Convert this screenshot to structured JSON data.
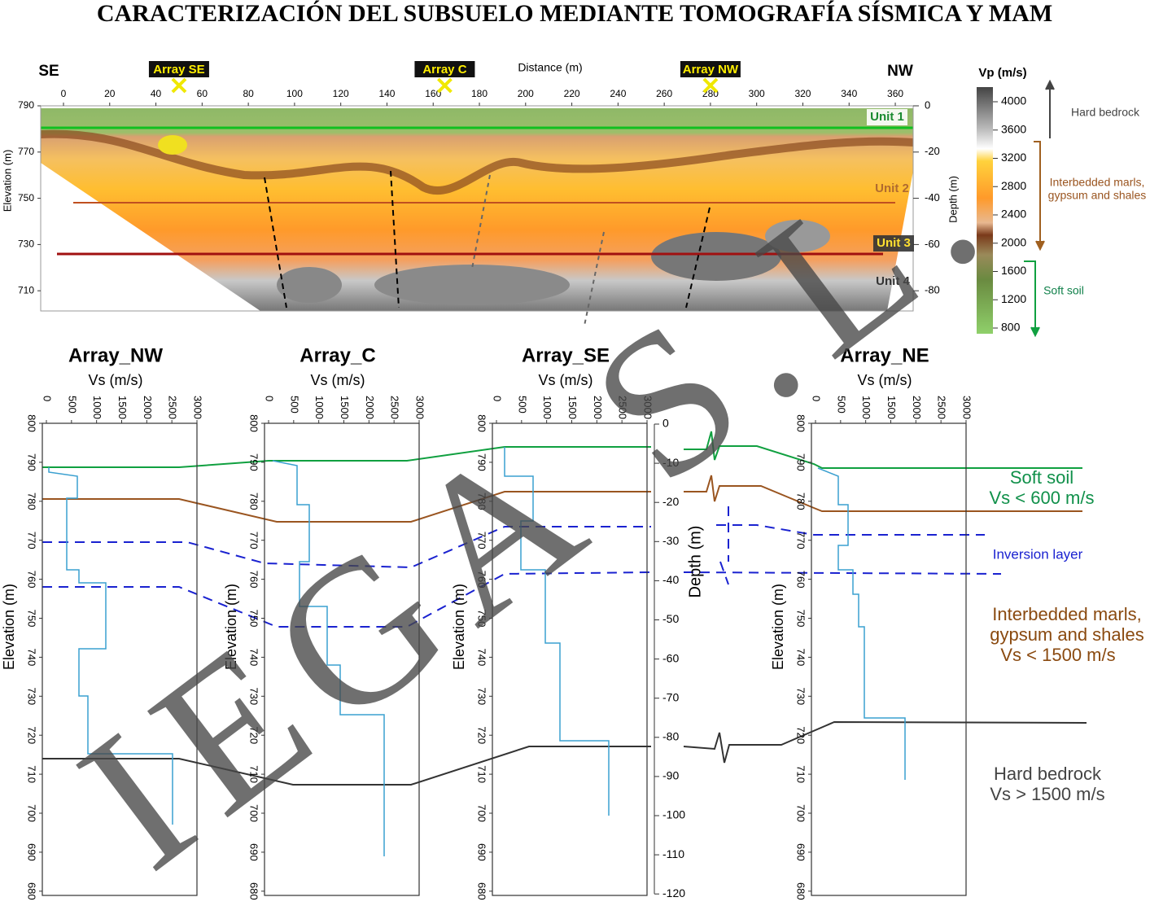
{
  "title": "CARACTERIZACIÓN DEL SUBSUELO MEDIANTE TOMOGRAFÍA SÍSMICA Y MAM",
  "tomography": {
    "side_left": "SE",
    "side_right": "NW",
    "x_label": "Distance (m)",
    "y_label": "Elevation (m)",
    "y2_label": "Depth (m)",
    "x_ticks": [
      0,
      20,
      40,
      60,
      80,
      100,
      120,
      140,
      160,
      180,
      200,
      220,
      240,
      260,
      280,
      300,
      320,
      340,
      360
    ],
    "y_ticks": [
      790,
      770,
      750,
      730,
      710
    ],
    "depth_ticks": [
      0,
      -20,
      -40,
      -60,
      -80
    ],
    "arrays": [
      {
        "label": "Array SE",
        "distance": 50
      },
      {
        "label": "Array C",
        "distance": 165
      },
      {
        "label": "Array NW",
        "distance": 280
      }
    ],
    "units": [
      "Unit 1",
      "Unit 2",
      "Unit 3",
      "Unit 4"
    ]
  },
  "colorbar": {
    "title": "Vp (m/s)",
    "ticks": [
      4000,
      3600,
      3200,
      2800,
      2400,
      2000,
      1600,
      1200,
      800
    ],
    "legend": [
      "Hard bedrock",
      "Interbedded marls,",
      "gypsum and shales",
      "Soft soil"
    ]
  },
  "profiles": {
    "titles": [
      "Array_NW",
      "Array_C",
      "Array_SE",
      "Array_NE"
    ],
    "vs_label": "Vs (m/s)",
    "vs_ticks": [
      0,
      500,
      1000,
      1500,
      2000,
      2500,
      3000
    ],
    "elev_label": "Elevation (m)",
    "elev_ticks": [
      800,
      790,
      780,
      770,
      760,
      750,
      740,
      730,
      720,
      710,
      700,
      690,
      680
    ],
    "depth_label": "Depth (m)",
    "depth_ticks": [
      0,
      -10,
      -20,
      -30,
      -40,
      -50,
      -60,
      -70,
      -80,
      -90,
      -100,
      -110,
      -120
    ]
  },
  "legend": {
    "soft": [
      "Soft soil",
      "Vs < 600 m/s"
    ],
    "inversion": "Inversion layer",
    "marls": [
      "Interbedded marls,",
      "gypsum and shales",
      "Vs < 1500 m/s"
    ],
    "bedrock": [
      "Hard bedrock",
      "Vs > 1500 m/s"
    ]
  },
  "watermark": "IEGA S.L."
}
